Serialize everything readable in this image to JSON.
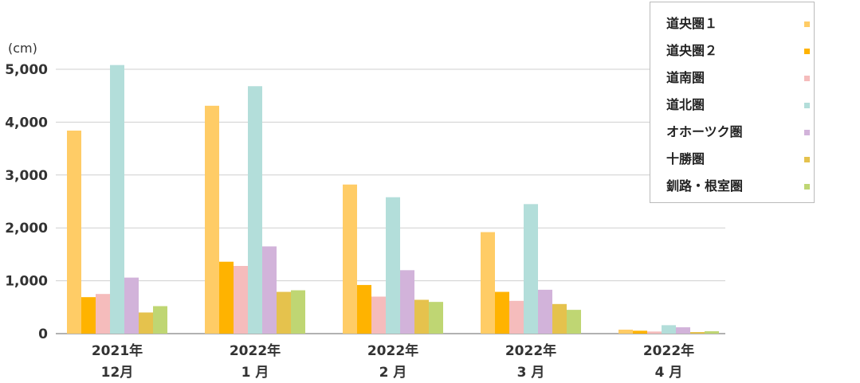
{
  "chart_data": {
    "type": "bar",
    "unit_label": "(cm)",
    "ylim": [
      0,
      5000
    ],
    "yticks": [
      "0",
      "1,000",
      "2,000",
      "3,000",
      "4,000",
      "5,000"
    ],
    "categories": [
      [
        "2021年",
        "12月"
      ],
      [
        "2022年",
        "1 月"
      ],
      [
        "2022年",
        "2 月"
      ],
      [
        "2022年",
        "3 月"
      ],
      [
        "2022年",
        "4 月"
      ]
    ],
    "series": [
      {
        "name": "道央圏１",
        "color": "#FFCC66",
        "values": [
          3840,
          4310,
          2820,
          1920,
          75
        ]
      },
      {
        "name": "道央圏２",
        "color": "#FFB300",
        "values": [
          690,
          1360,
          920,
          790,
          55
        ]
      },
      {
        "name": "道南圏",
        "color": "#F5BCBC",
        "values": [
          750,
          1280,
          700,
          620,
          40
        ]
      },
      {
        "name": "道北圏",
        "color": "#B3DEDA",
        "values": [
          5080,
          4680,
          2580,
          2450,
          160
        ]
      },
      {
        "name": "オホーツク圏",
        "color": "#D2B3DA",
        "values": [
          1060,
          1650,
          1200,
          830,
          120
        ]
      },
      {
        "name": "十勝圏",
        "color": "#E5C24D",
        "values": [
          400,
          790,
          640,
          560,
          30
        ]
      },
      {
        "name": "釧路・根室圏",
        "color": "#BFD673",
        "values": [
          520,
          820,
          600,
          450,
          45
        ]
      }
    ],
    "grid": true,
    "legend_position": "top-right"
  }
}
